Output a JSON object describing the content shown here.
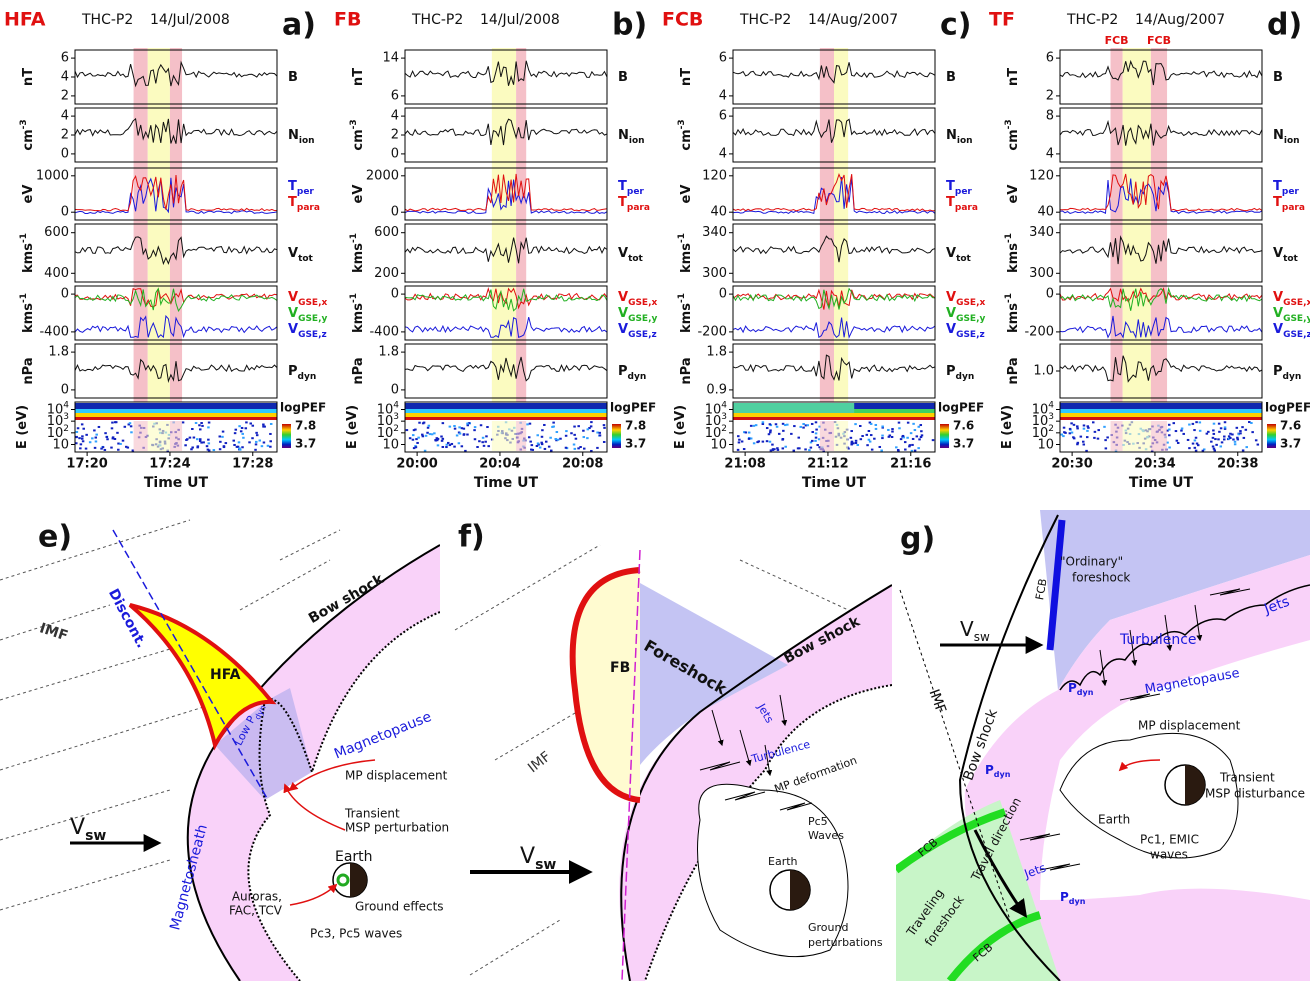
{
  "panels": [
    {
      "event": "HFA",
      "probe": "THC-P2",
      "date": "14/Jul/2008",
      "letter": "a)",
      "rows": [
        {
          "unit": {
            "main": "nT"
          },
          "ticks": [
            "6",
            "4",
            "2"
          ],
          "labels": [
            {
              "main": "B"
            }
          ]
        },
        {
          "unit": {
            "main": "cm",
            "sup": "-3"
          },
          "ticks": [
            "4",
            "2",
            "0"
          ],
          "labels": [
            {
              "main": "N",
              "sub": "ion"
            }
          ]
        },
        {
          "unit": {
            "main": "eV"
          },
          "ticks": [
            "1000",
            "0"
          ],
          "labels": [
            {
              "main": "T",
              "sub": "per",
              "color": "#1a1adb"
            },
            {
              "main": "T",
              "sub": "para",
              "color": "#e01010"
            }
          ]
        },
        {
          "unit": {
            "main": "kms",
            "sup": "-1"
          },
          "ticks": [
            "600",
            "400"
          ],
          "labels": [
            {
              "main": "V",
              "sub": "tot"
            }
          ]
        },
        {
          "unit": {
            "main": "kms",
            "sup": "-1"
          },
          "ticks": [
            "0",
            "-400"
          ],
          "labels": [
            {
              "main": "V",
              "sub": "GSE,x",
              "color": "#e01010"
            },
            {
              "main": "V",
              "sub": "GSE,y",
              "color": "#22b022"
            },
            {
              "main": "V",
              "sub": "GSE,z",
              "color": "#1a1adb"
            }
          ]
        },
        {
          "unit": {
            "main": "nPa"
          },
          "ticks": [
            "1.8",
            "0"
          ],
          "labels": [
            {
              "main": "P",
              "sub": "dyn"
            }
          ]
        },
        {
          "unit": {
            "main": "E (eV)"
          },
          "ticks": [
            {
              "main": "10",
              "sup": "4"
            },
            {
              "main": "10",
              "sup": "3"
            },
            {
              "main": "10",
              "sup": "2"
            },
            {
              "main": "10"
            }
          ]
        }
      ],
      "colorbar": {
        "title": "logPEF",
        "max": "7.8",
        "min": "3.7"
      },
      "xticks": [
        "17:20",
        "17:24",
        "17:28"
      ],
      "xlabel": "Time UT"
    },
    {
      "event": "FB",
      "probe": "THC-P2",
      "date": "14/Jul/2008",
      "letter": "b)",
      "rows": [
        {
          "unit": {
            "main": "nT"
          },
          "ticks": [
            "14",
            "6"
          ],
          "labels": [
            {
              "main": "B"
            }
          ]
        },
        {
          "unit": {
            "main": "cm",
            "sup": "-3"
          },
          "ticks": [
            "4",
            "2",
            "0"
          ],
          "labels": [
            {
              "main": "N",
              "sub": "ion"
            }
          ]
        },
        {
          "unit": {
            "main": "eV"
          },
          "ticks": [
            "2000",
            "0"
          ],
          "labels": [
            {
              "main": "T",
              "sub": "per",
              "color": "#1a1adb"
            },
            {
              "main": "T",
              "sub": "para",
              "color": "#e01010"
            }
          ]
        },
        {
          "unit": {
            "main": "kms",
            "sup": "-1"
          },
          "ticks": [
            "600",
            "200"
          ],
          "labels": [
            {
              "main": "V",
              "sub": "tot"
            }
          ]
        },
        {
          "unit": {
            "main": "kms",
            "sup": "-1"
          },
          "ticks": [
            "0",
            "-400"
          ],
          "labels": [
            {
              "main": "V",
              "sub": "GSE,x",
              "color": "#e01010"
            },
            {
              "main": "V",
              "sub": "GSE,y",
              "color": "#22b022"
            },
            {
              "main": "V",
              "sub": "GSE,z",
              "color": "#1a1adb"
            }
          ]
        },
        {
          "unit": {
            "main": "nPa"
          },
          "ticks": [
            "1.8",
            "0"
          ],
          "labels": [
            {
              "main": "P",
              "sub": "dyn"
            }
          ]
        },
        {
          "unit": {
            "main": "E (eV)"
          },
          "ticks": [
            {
              "main": "10",
              "sup": "4"
            },
            {
              "main": "10",
              "sup": "3"
            },
            {
              "main": "10",
              "sup": "2"
            },
            {
              "main": "10"
            }
          ]
        }
      ],
      "colorbar": {
        "title": "logPEF",
        "max": "7.8",
        "min": "3.7"
      },
      "xticks": [
        "20:00",
        "20:04",
        "20:08"
      ],
      "xlabel": "Time UT"
    },
    {
      "event": "FCB",
      "probe": "THC-P2",
      "date": "14/Aug/2007",
      "letter": "c)",
      "rows": [
        {
          "unit": {
            "main": "nT"
          },
          "ticks": [
            "6",
            "4"
          ],
          "labels": [
            {
              "main": "B"
            }
          ]
        },
        {
          "unit": {
            "main": "cm",
            "sup": "-3"
          },
          "ticks": [
            "6",
            "4"
          ],
          "labels": [
            {
              "main": "N",
              "sub": "ion"
            }
          ]
        },
        {
          "unit": {
            "main": "eV"
          },
          "ticks": [
            "120",
            "40"
          ],
          "labels": [
            {
              "main": "T",
              "sub": "per",
              "color": "#1a1adb"
            },
            {
              "main": "T",
              "sub": "para",
              "color": "#e01010"
            }
          ]
        },
        {
          "unit": {
            "main": "kms",
            "sup": "-1"
          },
          "ticks": [
            "340",
            "300"
          ],
          "labels": [
            {
              "main": "V",
              "sub": "tot"
            }
          ]
        },
        {
          "unit": {
            "main": "kms",
            "sup": "-1"
          },
          "ticks": [
            "0",
            "-200"
          ],
          "labels": [
            {
              "main": "V",
              "sub": "GSE,x",
              "color": "#e01010"
            },
            {
              "main": "V",
              "sub": "GSE,y",
              "color": "#22b022"
            },
            {
              "main": "V",
              "sub": "GSE,z",
              "color": "#1a1adb"
            }
          ]
        },
        {
          "unit": {
            "main": "nPa"
          },
          "ticks": [
            "1.8",
            "0.9"
          ],
          "labels": [
            {
              "main": "P",
              "sub": "dyn"
            }
          ]
        },
        {
          "unit": {
            "main": "E (eV)"
          },
          "ticks": [
            {
              "main": "10",
              "sup": "4"
            },
            {
              "main": "10",
              "sup": "3"
            },
            {
              "main": "10",
              "sup": "2"
            },
            {
              "main": "10"
            }
          ]
        }
      ],
      "colorbar": {
        "title": "logPEF",
        "max": "7.6",
        "min": "3.7"
      },
      "xticks": [
        "21:08",
        "21:12",
        "21:16"
      ],
      "xlabel": "Time UT"
    },
    {
      "event": "TF",
      "probe": "THC-P2",
      "date": "14/Aug/2007",
      "letter": "d)",
      "markers": [
        "FCB",
        "FCB"
      ],
      "rows": [
        {
          "unit": {
            "main": "nT"
          },
          "ticks": [
            "6",
            "2"
          ],
          "labels": [
            {
              "main": "B"
            }
          ]
        },
        {
          "unit": {
            "main": "cm",
            "sup": "-3"
          },
          "ticks": [
            "8",
            "4"
          ],
          "labels": [
            {
              "main": "N",
              "sub": "ion"
            }
          ]
        },
        {
          "unit": {
            "main": "eV"
          },
          "ticks": [
            "120",
            "40"
          ],
          "labels": [
            {
              "main": "T",
              "sub": "per",
              "color": "#1a1adb"
            },
            {
              "main": "T",
              "sub": "para",
              "color": "#e01010"
            }
          ]
        },
        {
          "unit": {
            "main": "kms",
            "sup": "-1"
          },
          "ticks": [
            "340",
            "300"
          ],
          "labels": [
            {
              "main": "V",
              "sub": "tot"
            }
          ]
        },
        {
          "unit": {
            "main": "kms",
            "sup": "-1"
          },
          "ticks": [
            "0",
            "-200"
          ],
          "labels": [
            {
              "main": "V",
              "sub": "GSE,x",
              "color": "#e01010"
            },
            {
              "main": "V",
              "sub": "GSE,y",
              "color": "#22b022"
            },
            {
              "main": "V",
              "sub": "GSE,z",
              "color": "#1a1adb"
            }
          ]
        },
        {
          "unit": {
            "main": "nPa"
          },
          "ticks": [
            "1.0"
          ],
          "labels": [
            {
              "main": "P",
              "sub": "dyn"
            }
          ]
        },
        {
          "unit": {
            "main": "E (eV)"
          },
          "ticks": [
            {
              "main": "10",
              "sup": "4"
            },
            {
              "main": "10",
              "sup": "3"
            },
            {
              "main": "10",
              "sup": "2"
            },
            {
              "main": "10"
            }
          ]
        }
      ],
      "colorbar": {
        "title": "logPEF",
        "max": "7.6",
        "min": "3.7"
      },
      "xticks": [
        "20:30",
        "20:34",
        "20:38"
      ],
      "xlabel": "Time UT"
    }
  ],
  "diagrams": {
    "e": {
      "letter": "e)",
      "discont": "Discont.",
      "imf": "IMF",
      "hfa": "HFA",
      "bow_shock": "Bow shock",
      "low_pdyn": {
        "main": "Low P",
        "sub": "dyn"
      },
      "magnetopause": "Magnetopause",
      "mp_displacement": "MP displacement",
      "transient": [
        "Transient",
        "MSP perturbation"
      ],
      "vsw": {
        "main": "V",
        "sub": "sw"
      },
      "magnetosheath": "Magnetosheath",
      "earth": "Earth",
      "auroras": [
        "Auroras,",
        "FAC, TCV"
      ],
      "ground_effects": "Ground effects",
      "waves": "Pc3, Pc5 waves"
    },
    "f": {
      "letter": "f)",
      "fb": "FB",
      "foreshock": "Foreshock",
      "bow_shock": "Bow shock",
      "imf": "IMF",
      "jets": "Jets",
      "turbulence": "Turbulence",
      "mp_deformation": "MP deformation",
      "waves": [
        "Pc5",
        "Waves"
      ],
      "earth": "Earth",
      "ground": [
        "Ground",
        "perturbations"
      ],
      "vsw": {
        "main": "V",
        "sub": "sw"
      }
    },
    "g": {
      "letter": "g)",
      "ordinary": [
        "\"Ordinary\"",
        "foreshock"
      ],
      "fcb_top": "FCB",
      "vsw": {
        "main": "V",
        "sub": "sw"
      },
      "jets_top": "Jets",
      "turbulence": "Turbulence",
      "magnetopause": "Magnetopause",
      "pdyn_top": {
        "main": "P",
        "sub": "dyn"
      },
      "mp_displacement": "MP displacement",
      "imf": "IMF",
      "bow_shock": "Bow shock",
      "transient": [
        "Transient",
        "MSP disturbance"
      ],
      "earth": "Earth",
      "waves": [
        "Pc1, EMIC",
        "waves"
      ],
      "pdyn_left": {
        "main": "P",
        "sub": "dyn"
      },
      "fcb_left": "FCB",
      "travel": "Travel direction",
      "jets_bottom": "Jets",
      "traveling": [
        "Traveling",
        "foreshock"
      ],
      "fcb_bottom": "FCB",
      "pdyn_bottom": {
        "main": "P",
        "sub": "dyn"
      }
    }
  }
}
